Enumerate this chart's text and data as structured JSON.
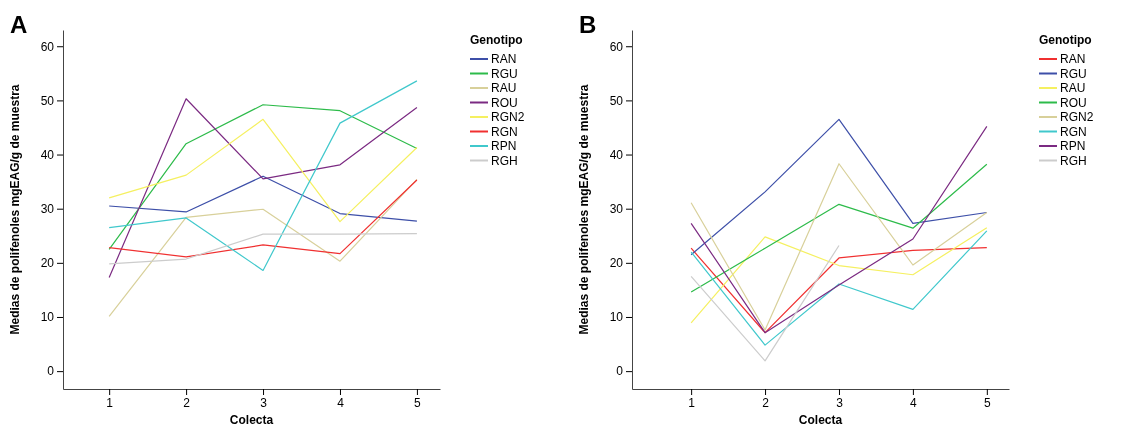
{
  "chart_data": [
    {
      "type": "line",
      "title": "A",
      "xlabel": "Colecta",
      "ylabel": "Medias de polifenoles mgEAG/g de muestra",
      "legend_title": "Genotipo",
      "legend": "top right",
      "grid": false,
      "marker": "none",
      "line_style": "solid",
      "x": [
        1,
        2,
        3,
        4,
        5
      ],
      "xlim": [
        0.4,
        5.3
      ],
      "xticks": [
        1,
        2,
        3,
        4,
        5
      ],
      "ylim": [
        -3.3,
        63
      ],
      "yticks": [
        0,
        10,
        20,
        30,
        40,
        50,
        60
      ],
      "series": [
        {
          "name": "RAN",
          "color": "#3d4fa8",
          "values": [
            30.5,
            29.4,
            36,
            29.1,
            27.7
          ]
        },
        {
          "name": "RGU",
          "color": "#2dbb4a",
          "values": [
            22.5,
            42,
            49.2,
            48.1,
            41.1
          ]
        },
        {
          "name": "RAU",
          "color": "#d8d09a",
          "values": [
            10.1,
            28.4,
            29.9,
            20.3,
            35.4
          ]
        },
        {
          "name": "ROU",
          "color": "#7b2a82",
          "values": [
            17.3,
            50.3,
            35.5,
            38.1,
            48.7
          ]
        },
        {
          "name": "RGN2",
          "color": "#f5f060",
          "values": [
            32,
            36.2,
            46.5,
            27.6,
            41.3
          ]
        },
        {
          "name": "RGN",
          "color": "#f03030",
          "values": [
            22.8,
            21.1,
            23.3,
            21.7,
            35.3
          ]
        },
        {
          "name": "RPN",
          "color": "#40c8cc",
          "values": [
            26.5,
            28.3,
            18.6,
            45.8,
            53.6
          ]
        },
        {
          "name": "RGH",
          "color": "#cccccc",
          "values": [
            19.8,
            20.7,
            25.3,
            25.3,
            25.4
          ]
        }
      ]
    },
    {
      "type": "line",
      "title": "B",
      "xlabel": "Colecta",
      "ylabel": "Medias de polifenoles mgEAG/g de muestra",
      "legend_title": "Genotipo",
      "legend": "top right",
      "grid": false,
      "marker": "none",
      "line_style": "solid",
      "x": [
        1,
        2,
        3,
        4,
        5
      ],
      "xlim": [
        0.2,
        5.3
      ],
      "xticks": [
        1,
        2,
        3,
        4,
        5
      ],
      "ylim": [
        -3.3,
        63
      ],
      "yticks": [
        0,
        10,
        20,
        30,
        40,
        50,
        60
      ],
      "series": [
        {
          "name": "RAN",
          "color": "#f03030",
          "values": [
            22.7,
            7.1,
            20.9,
            22.3,
            22.8
          ]
        },
        {
          "name": "RGU",
          "color": "#3d4fa8",
          "values": [
            21.5,
            33.1,
            46.5,
            27.3,
            29.3
          ]
        },
        {
          "name": "RAU",
          "color": "#f5f060",
          "values": [
            8.9,
            24.8,
            19.5,
            17.8,
            26.5
          ]
        },
        {
          "name": "ROU",
          "color": "#2dbb4a",
          "values": [
            14.6,
            22.7,
            30.8,
            26.4,
            38.2
          ]
        },
        {
          "name": "RGN2",
          "color": "#d8d09a",
          "values": [
            31.1,
            7.6,
            38.3,
            19.6,
            29.3
          ]
        },
        {
          "name": "RGN",
          "color": "#40c8cc",
          "values": [
            22,
            4.8,
            16.1,
            11.4,
            25.9
          ]
        },
        {
          "name": "RPN",
          "color": "#7b2a82",
          "values": [
            27.3,
            7.1,
            15.9,
            24.4,
            45.2
          ]
        },
        {
          "name": "RGH",
          "color": "#cccccc",
          "values": [
            17.5,
            1.9,
            23.2,
            null,
            null
          ]
        }
      ]
    }
  ]
}
